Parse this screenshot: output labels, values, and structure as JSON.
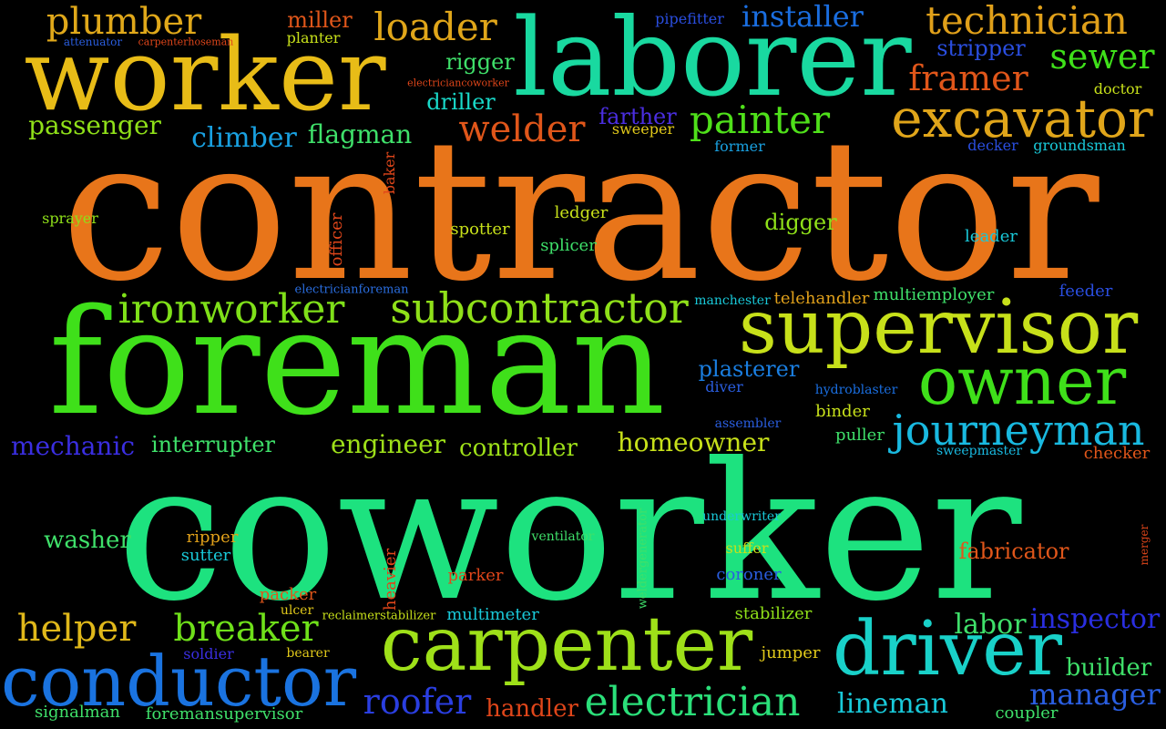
{
  "words": [
    {
      "text": "contractor",
      "color": "#e8751a"
    },
    {
      "text": "coworker",
      "color": "#1de27f"
    },
    {
      "text": "foreman",
      "color": "#3fe01a"
    },
    {
      "text": "laborer",
      "color": "#19d9a0"
    },
    {
      "text": "worker",
      "color": "#e8bc17"
    },
    {
      "text": "supervisor",
      "color": "#c7e01a"
    },
    {
      "text": "carpenter",
      "color": "#9ee019"
    },
    {
      "text": "driver",
      "color": "#19d1c9"
    },
    {
      "text": "conductor",
      "color": "#1a73e0"
    },
    {
      "text": "owner",
      "color": "#3fe01a"
    },
    {
      "text": "excavator",
      "color": "#e0a51a"
    },
    {
      "text": "journeyman",
      "color": "#19b9e0"
    },
    {
      "text": "subcontractor",
      "color": "#8fe019"
    },
    {
      "text": "ironworker",
      "color": "#7fe019"
    },
    {
      "text": "technician",
      "color": "#e0a01a"
    },
    {
      "text": "electrician",
      "color": "#2be07a"
    },
    {
      "text": "painter",
      "color": "#4fe01a"
    },
    {
      "text": "loader",
      "color": "#e0a61a"
    },
    {
      "text": "plumber",
      "color": "#e0a81a"
    },
    {
      "text": "installer",
      "color": "#1a6ee0"
    },
    {
      "text": "framer",
      "color": "#e0561a"
    },
    {
      "text": "sewer",
      "color": "#3fe01a"
    },
    {
      "text": "welder",
      "color": "#e0561a"
    },
    {
      "text": "breaker",
      "color": "#6fe01a"
    },
    {
      "text": "helper",
      "color": "#e0b81a"
    },
    {
      "text": "roofer",
      "color": "#2a3ee0"
    },
    {
      "text": "inspector",
      "color": "#2a2ee0"
    },
    {
      "text": "manager",
      "color": "#2a5ee0"
    },
    {
      "text": "lineman",
      "color": "#19c9d9"
    },
    {
      "text": "labor",
      "color": "#3fe06a"
    },
    {
      "text": "builder",
      "color": "#3fe06a"
    },
    {
      "text": "mechanic",
      "color": "#3a2ee0"
    },
    {
      "text": "engineer",
      "color": "#9ee019"
    },
    {
      "text": "homeowner",
      "color": "#c7e01a"
    },
    {
      "text": "controller",
      "color": "#9ee019"
    },
    {
      "text": "interrupter",
      "color": "#3fe06a"
    },
    {
      "text": "climber",
      "color": "#19a0e0"
    },
    {
      "text": "flagman",
      "color": "#3fe06a"
    },
    {
      "text": "passenger",
      "color": "#8fe019"
    },
    {
      "text": "plasterer",
      "color": "#1a7ee0"
    },
    {
      "text": "fabricator",
      "color": "#e0561a"
    },
    {
      "text": "handler",
      "color": "#e0461a"
    },
    {
      "text": "washer",
      "color": "#3fe06a"
    },
    {
      "text": "rigger",
      "color": "#3fe06a"
    },
    {
      "text": "driller",
      "color": "#19d9c9"
    },
    {
      "text": "digger",
      "color": "#8fe019"
    },
    {
      "text": "miller",
      "color": "#e0561a"
    },
    {
      "text": "stripper",
      "color": "#2a4ee0"
    },
    {
      "text": "farther",
      "color": "#4a2ee0"
    },
    {
      "text": "multimeter",
      "color": "#19c9d9"
    },
    {
      "text": "signalman",
      "color": "#3fe06a"
    },
    {
      "text": "foremansupervisor",
      "color": "#3fe06a"
    },
    {
      "text": "coupler",
      "color": "#3fe06a"
    },
    {
      "text": "jumper",
      "color": "#e0c81a"
    },
    {
      "text": "stabilizer",
      "color": "#8fe019"
    },
    {
      "text": "coroner",
      "color": "#2a5ee0"
    },
    {
      "text": "suffer",
      "color": "#c7e01a"
    },
    {
      "text": "underwriter",
      "color": "#19c9d9"
    },
    {
      "text": "parker",
      "color": "#e0461a"
    },
    {
      "text": "packer",
      "color": "#e0561a"
    },
    {
      "text": "ripper",
      "color": "#e0a01a"
    },
    {
      "text": "sutter",
      "color": "#19c9d9"
    },
    {
      "text": "ventilator",
      "color": "#3fe06a"
    },
    {
      "text": "binder",
      "color": "#c7e01a"
    },
    {
      "text": "puller",
      "color": "#3fe06a"
    },
    {
      "text": "checker",
      "color": "#e0561a"
    },
    {
      "text": "sweepmaster",
      "color": "#19b9e0"
    },
    {
      "text": "assembler",
      "color": "#2a5ee0"
    },
    {
      "text": "hydroblaster",
      "color": "#1a6ee0"
    },
    {
      "text": "diver",
      "color": "#2a5ee0"
    },
    {
      "text": "multiemployer",
      "color": "#3fe06a"
    },
    {
      "text": "telehandler",
      "color": "#e0a01a"
    },
    {
      "text": "manchester",
      "color": "#19c9d9"
    },
    {
      "text": "feeder",
      "color": "#2a4ee0"
    },
    {
      "text": "leader",
      "color": "#19c9d9"
    },
    {
      "text": "electricianforeman",
      "color": "#2a6ee0"
    },
    {
      "text": "sprayer",
      "color": "#8fe019"
    },
    {
      "text": "spotter",
      "color": "#c7e01a"
    },
    {
      "text": "ledger",
      "color": "#c7e01a"
    },
    {
      "text": "splicer",
      "color": "#3fe06a"
    },
    {
      "text": "sweeper",
      "color": "#e0c81a"
    },
    {
      "text": "former",
      "color": "#19a0e0"
    },
    {
      "text": "decker",
      "color": "#2a4ee0"
    },
    {
      "text": "groundsman",
      "color": "#19c9d9"
    },
    {
      "text": "doctor",
      "color": "#c7e01a"
    },
    {
      "text": "pipefitter",
      "color": "#2a4ee0"
    },
    {
      "text": "planter",
      "color": "#c7e01a"
    },
    {
      "text": "attenuator",
      "color": "#2a5ee0"
    },
    {
      "text": "carpenterhoseman",
      "color": "#e0461a"
    },
    {
      "text": "electriciancoworker",
      "color": "#e0461a"
    },
    {
      "text": "ulcer",
      "color": "#e0c81a"
    },
    {
      "text": "reclaimerstabilizer",
      "color": "#c7e01a"
    },
    {
      "text": "soldier",
      "color": "#3a2ee0"
    },
    {
      "text": "bearer",
      "color": "#e0c81a"
    },
    {
      "text": "baker",
      "color": "#e0461a"
    },
    {
      "text": "officer",
      "color": "#e0461a"
    },
    {
      "text": "heavier",
      "color": "#e0461a"
    },
    {
      "text": "weldergenerator",
      "color": "#3fe06a"
    },
    {
      "text": "merger",
      "color": "#e0461a"
    }
  ]
}
